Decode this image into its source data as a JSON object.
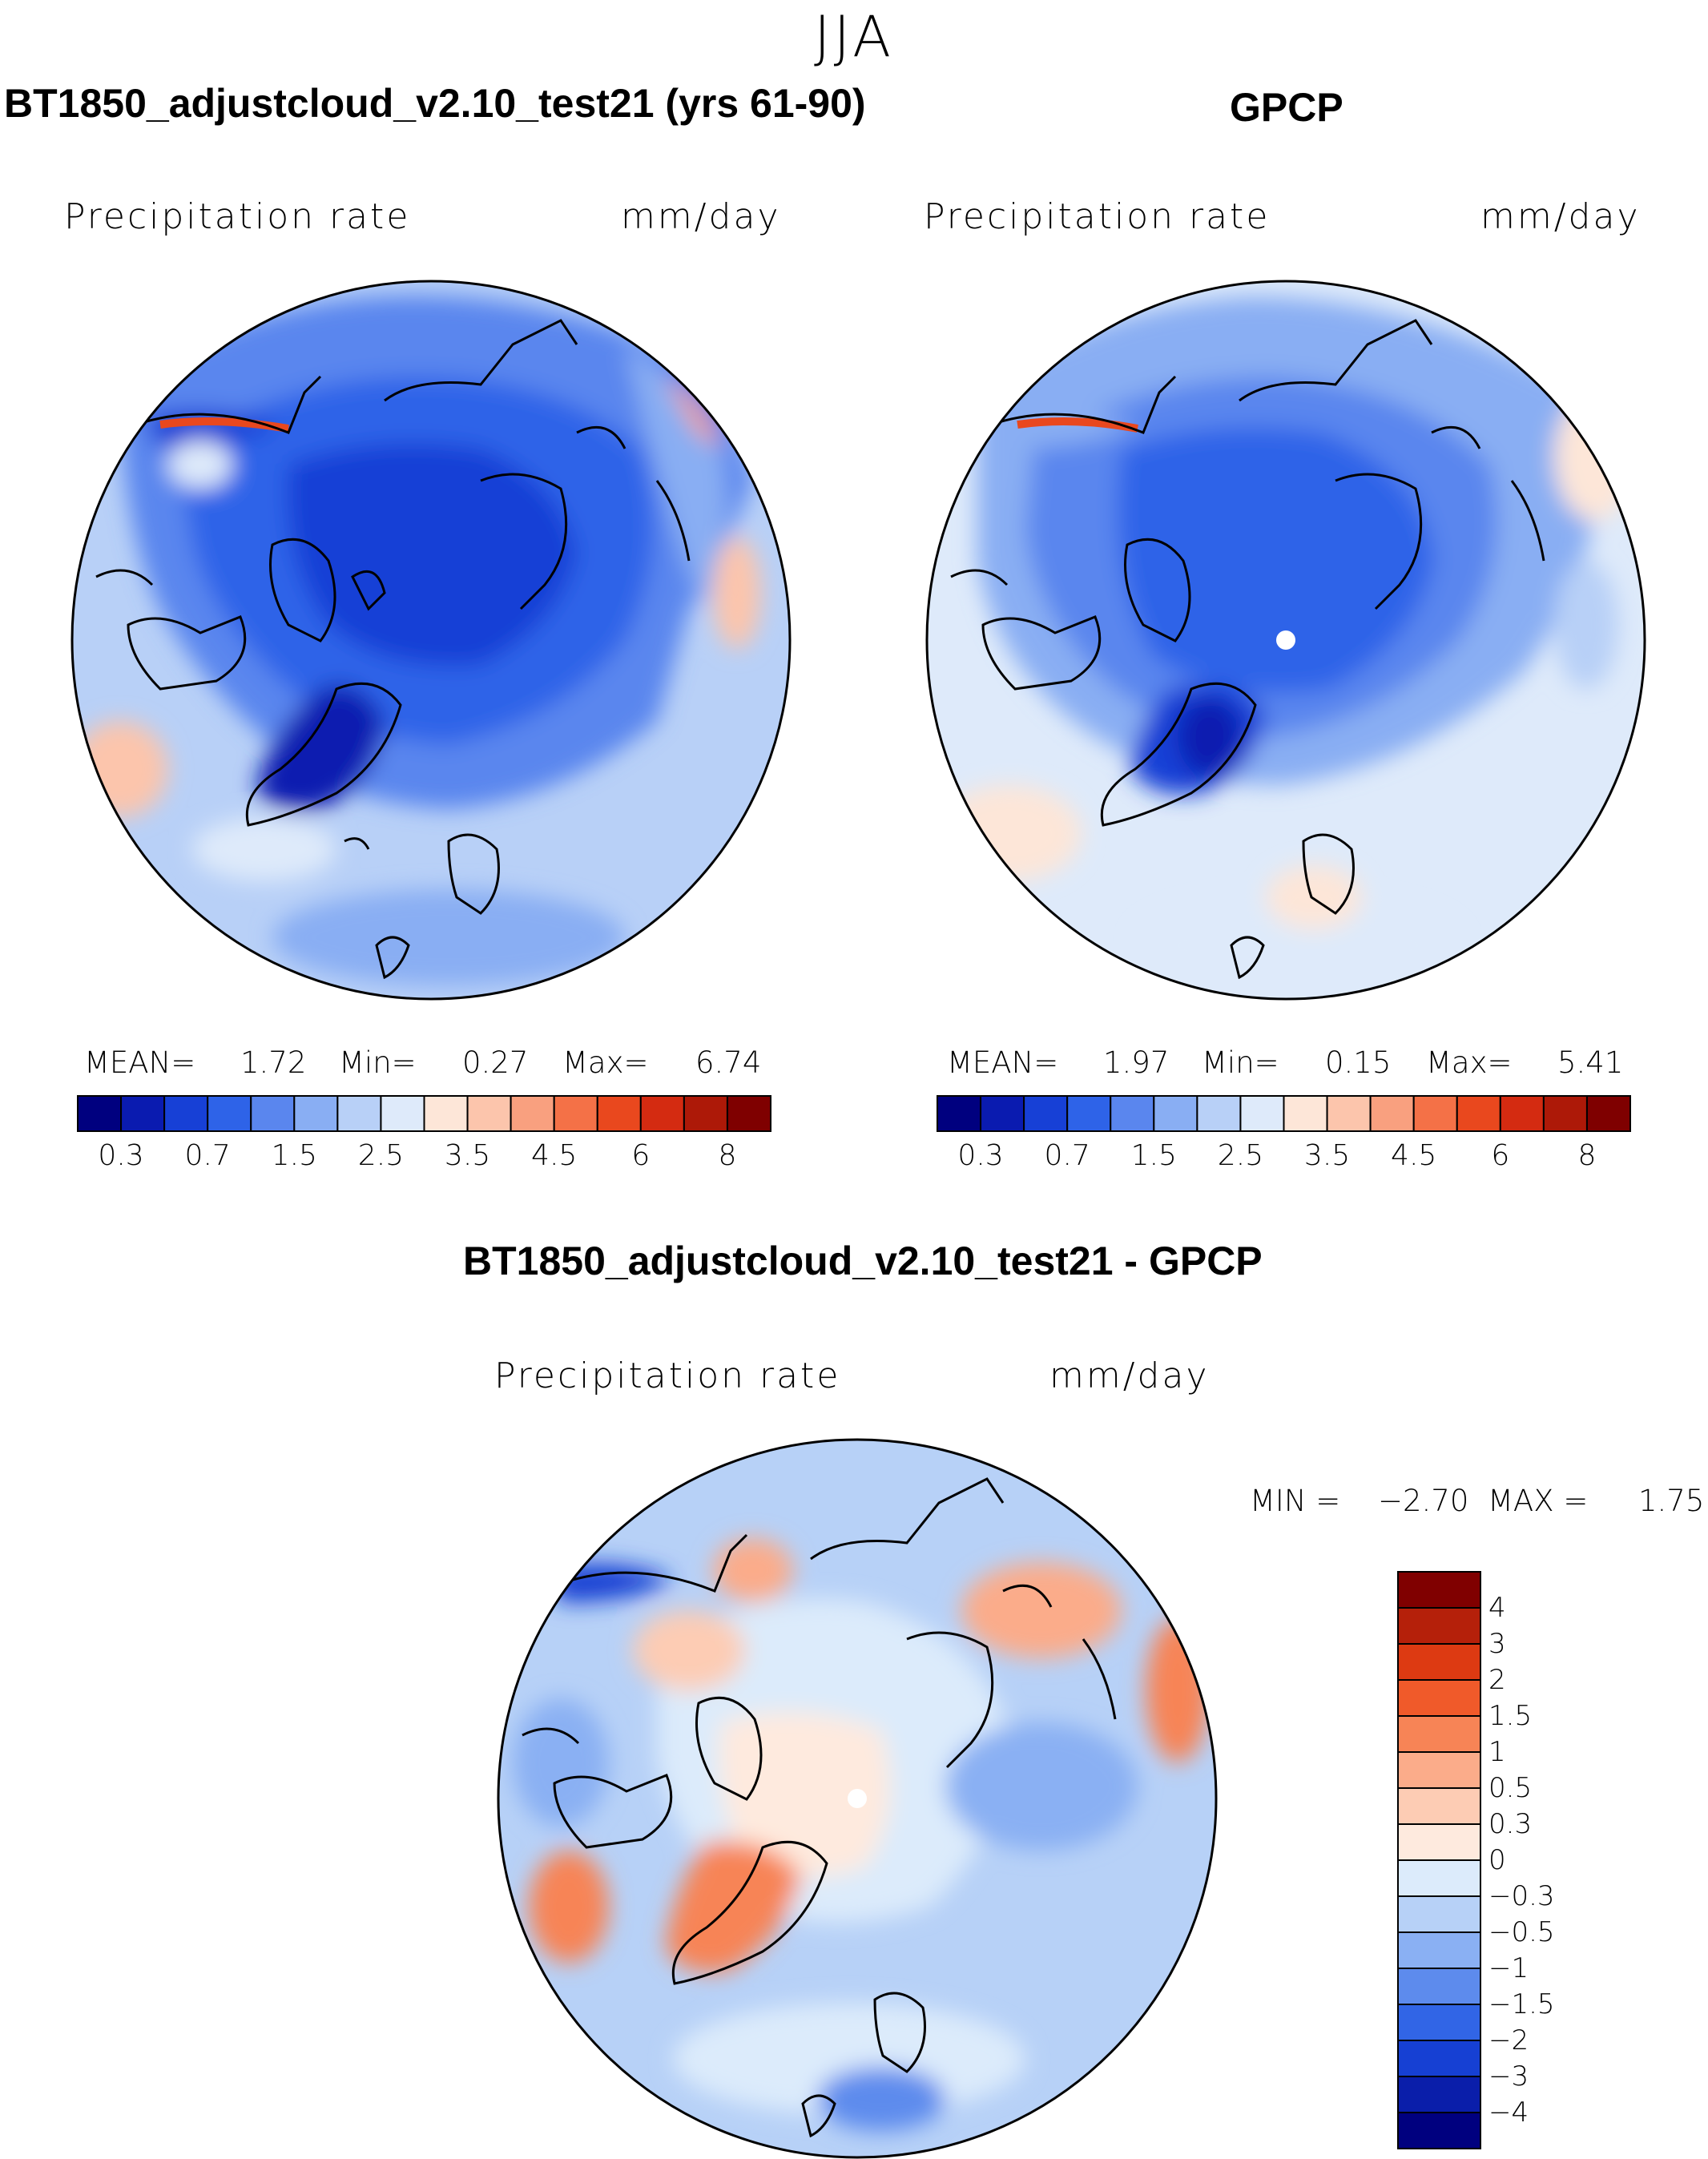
{
  "page_title": "JJA",
  "panels": {
    "model": {
      "title": "BT1850_adjustcloud_v2.10_test21 (yrs 61-90)",
      "field": "Precipitation rate",
      "units": "mm/day",
      "mean_label": "MEAN=",
      "mean_value": "1.72",
      "min_label": "Min=",
      "min_value": "0.27",
      "max_label": "Max=",
      "max_value": "6.74"
    },
    "obs": {
      "title": "GPCP",
      "field": "Precipitation rate",
      "units": "mm/day",
      "mean_label": "MEAN=",
      "mean_value": "1.97",
      "min_label": "Min=",
      "min_value": "0.15",
      "max_label": "Max=",
      "max_value": "5.41"
    },
    "diff": {
      "title": "BT1850_adjustcloud_v2.10_test21 - GPCP",
      "field": "Precipitation rate",
      "units": "mm/day",
      "min_label": "MIN =",
      "min_value": "−2.70",
      "max_label": "MAX =",
      "max_value": "1.75"
    }
  },
  "colorbars": {
    "abs_ticks": [
      "0.3",
      "0.7",
      "1.5",
      "2.5",
      "3.5",
      "4.5",
      "6",
      "8"
    ],
    "abs_colors": [
      "#00007f",
      "#0a1bb0",
      "#1740d6",
      "#2e63e8",
      "#5a86ee",
      "#89aef3",
      "#b8d0f7",
      "#deeafa",
      "#fde6d8",
      "#fcc5ac",
      "#f9a07f",
      "#f47147",
      "#e9481e",
      "#d42b11",
      "#ad1908",
      "#7f0000"
    ],
    "diff_ticks": [
      "4",
      "3",
      "2",
      "1.5",
      "1",
      "0.5",
      "0.3",
      "0",
      "−0.3",
      "−0.5",
      "−1",
      "−1.5",
      "−2",
      "−3",
      "−4"
    ],
    "diff_colors": [
      "#800000",
      "#b5200a",
      "#dd3a12",
      "#f05a2a",
      "#f78456",
      "#fbac8a",
      "#fdccb4",
      "#feeade",
      "#dcebfb",
      "#b7d1f7",
      "#8ab0f3",
      "#5d8bed",
      "#3165e6",
      "#1640d3",
      "#0a1eaa",
      "#00007f"
    ]
  },
  "colors": {
    "deep_blue": "#1a3fd8",
    "mid_blue": "#3f6fe6",
    "light_blue": "#a8c6f5",
    "pale_blue": "#d5e6fa",
    "peach": "#fcd8c4",
    "orange": "#f48a5c",
    "red": "#e0401a"
  }
}
